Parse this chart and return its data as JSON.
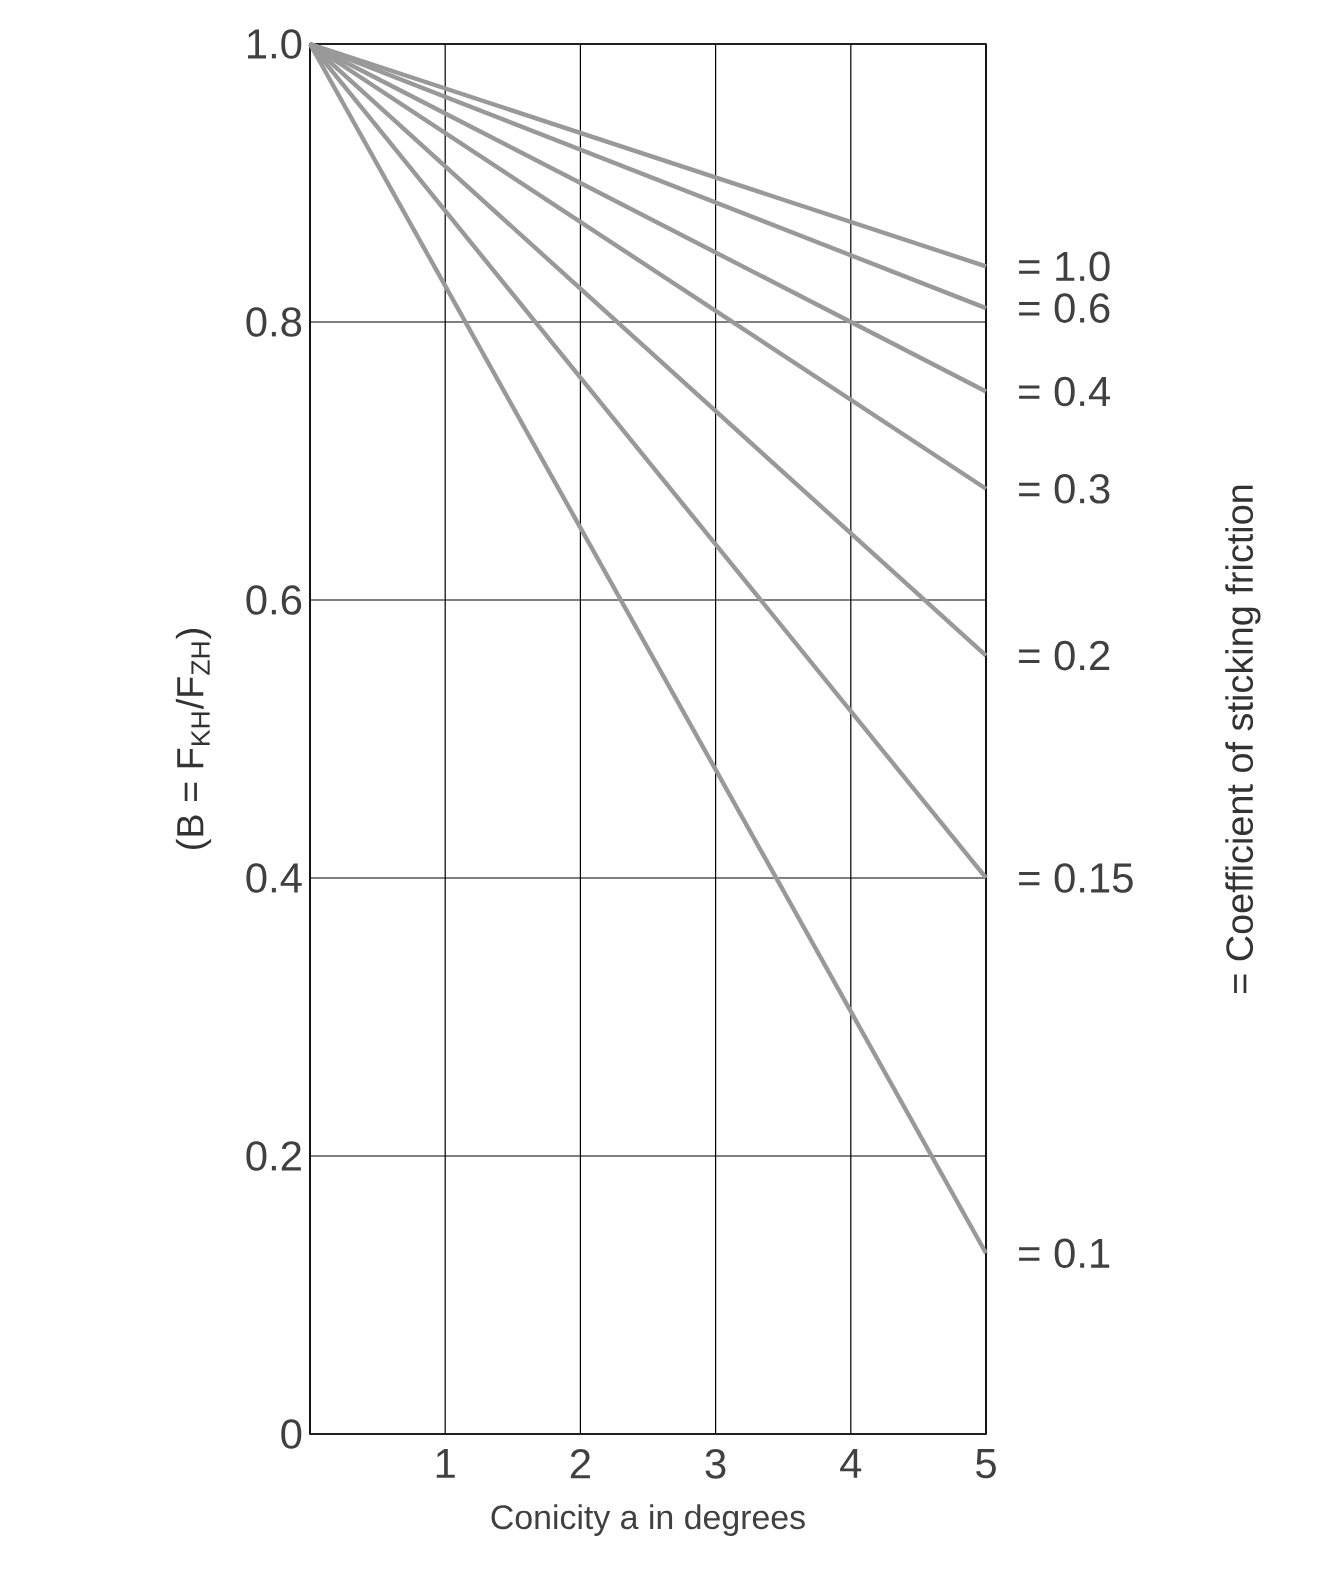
{
  "chart_data": {
    "type": "line",
    "xlabel": "Conicity a in degrees",
    "ylabel": "(B = F$_{KH}$/F$_{ZH}$)",
    "annotations": [
      "= Coefficient of sticking friction"
    ],
    "x": [
      0,
      5
    ],
    "xlim": [
      0,
      5
    ],
    "ylim": [
      0,
      1
    ],
    "xticks": [
      {
        "value": 0,
        "label": null
      },
      1,
      2,
      3,
      4,
      5
    ],
    "yticks": [
      0,
      {
        "value": 0.2,
        "label": "0.2"
      },
      {
        "value": 0.4,
        "label": "0.4"
      },
      {
        "value": 0.6,
        "label": "0.6"
      },
      {
        "value": 0.8,
        "label": "0.8"
      },
      {
        "value": 1,
        "label": "1.0"
      }
    ],
    "grid": true,
    "series": [
      {
        "name": "= 1.0",
        "color": "#999999",
        "values": [
          1,
          0.84
        ]
      },
      {
        "name": "= 0.6",
        "color": "#999999",
        "values": [
          1,
          0.81
        ]
      },
      {
        "name": "= 0.4",
        "color": "#999999",
        "values": [
          1,
          0.75
        ]
      },
      {
        "name": "= 0.3",
        "color": "#999999",
        "values": [
          1,
          0.68
        ]
      },
      {
        "name": "= 0.2",
        "color": "#999999",
        "values": [
          1,
          0.56
        ]
      },
      {
        "name": "= 0.15",
        "color": "#999999",
        "values": [
          1,
          0.4
        ]
      },
      {
        "name": "= 0.1",
        "color": "#999999",
        "values": [
          1,
          0.13
        ]
      }
    ]
  }
}
